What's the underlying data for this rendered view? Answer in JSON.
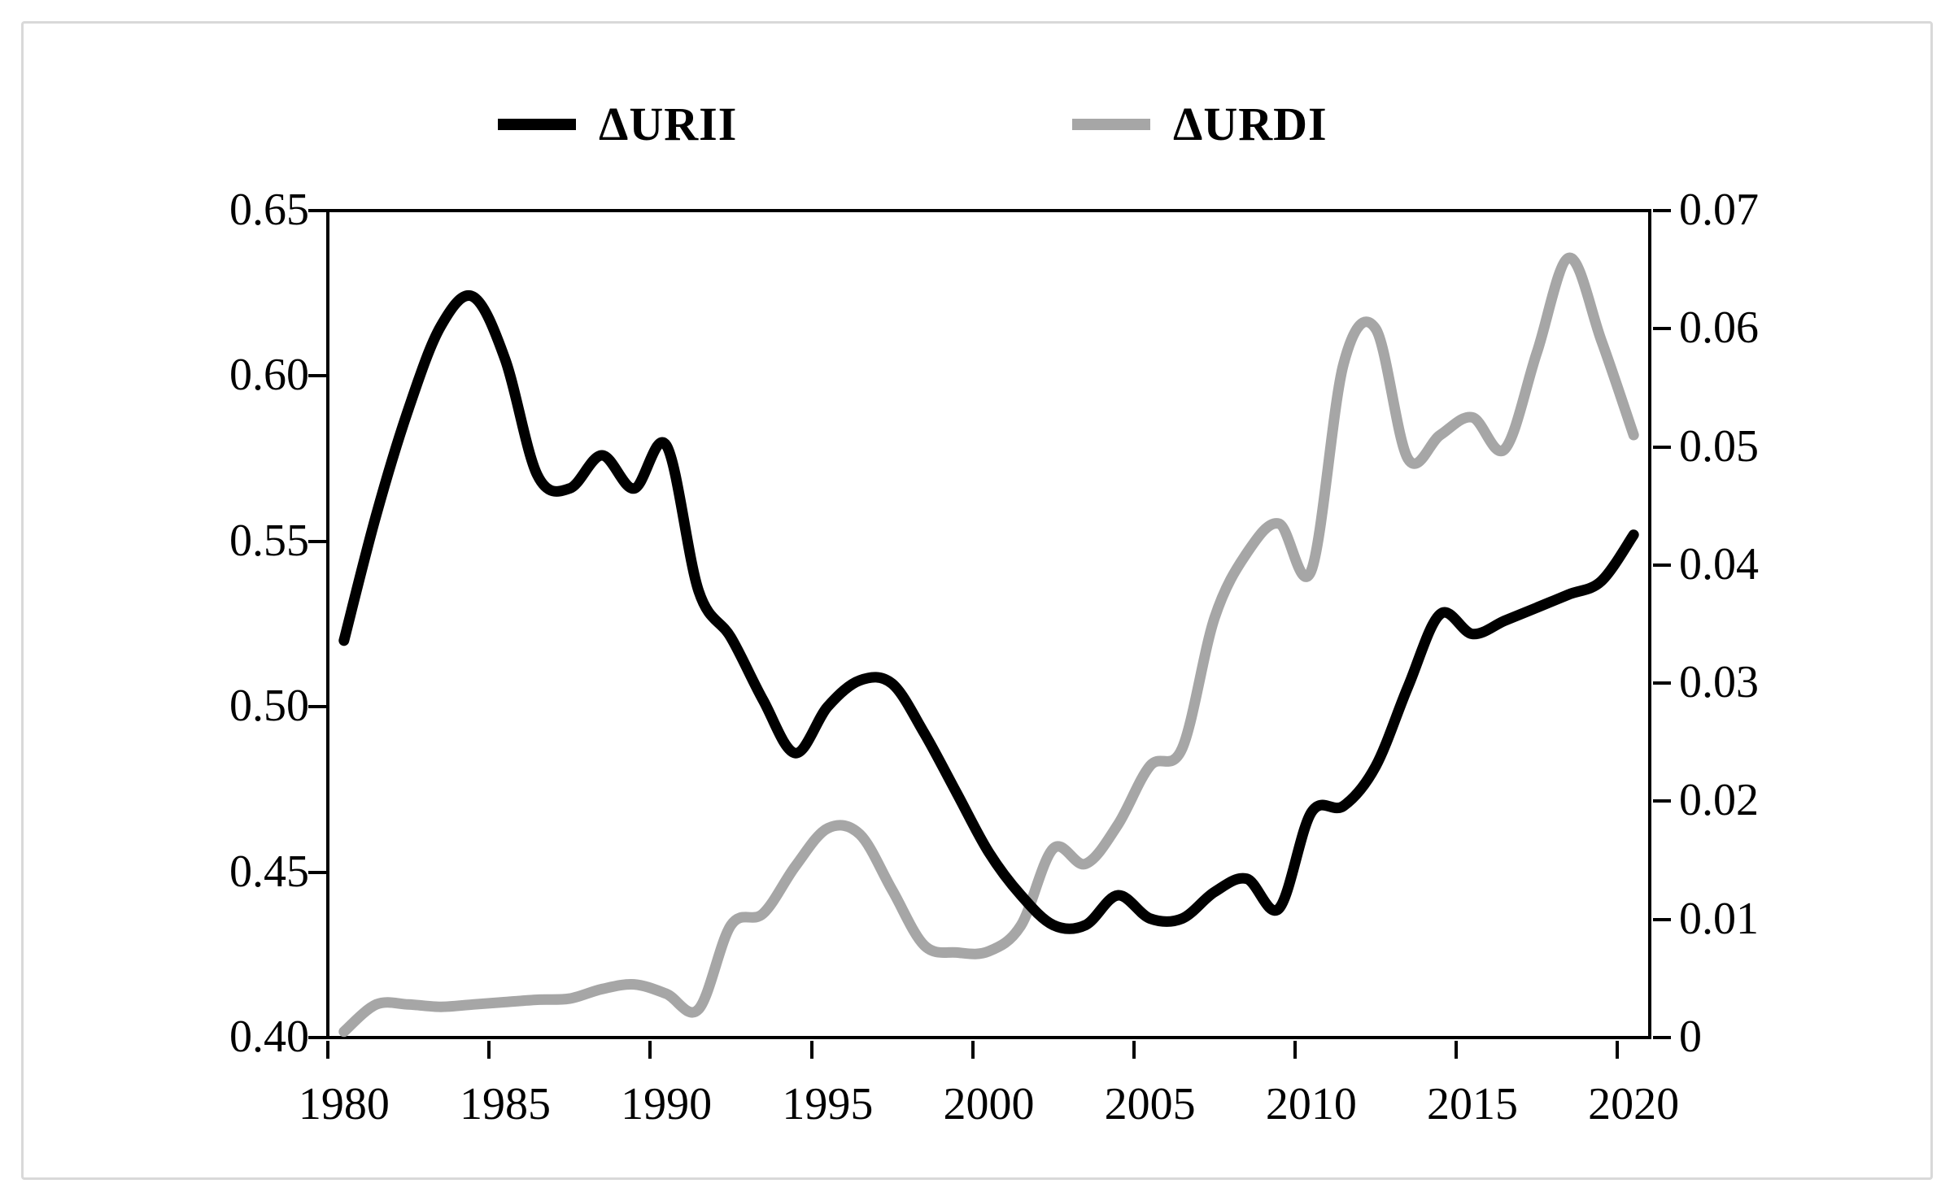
{
  "figure": {
    "background": "#ffffff",
    "frame_color": "#d9d9d9",
    "axis_color": "#000000"
  },
  "legend": {
    "items": [
      {
        "label": "ΔURII",
        "color": "#000000"
      },
      {
        "label": "ΔURDI",
        "color": "#a6a6a6"
      }
    ]
  },
  "chart_data": {
    "type": "line",
    "smoothed": true,
    "grid": false,
    "legend_position": "top-center",
    "title": "",
    "xlabel": "",
    "ylabel_left": "",
    "ylabel_right": "",
    "x": [
      1980,
      1981,
      1982,
      1983,
      1984,
      1985,
      1986,
      1987,
      1988,
      1989,
      1990,
      1991,
      1992,
      1993,
      1994,
      1995,
      1996,
      1997,
      1998,
      1999,
      2000,
      2001,
      2002,
      2003,
      2004,
      2005,
      2006,
      2007,
      2008,
      2009,
      2010,
      2011,
      2012,
      2013,
      2014,
      2015,
      2016,
      2017,
      2018,
      2019,
      2020
    ],
    "x_axis": {
      "tick_labels": [
        "1980",
        "1985",
        "1990",
        "1995",
        "2000",
        "2005",
        "2010",
        "2015",
        "2020"
      ],
      "tick_years": [
        1980,
        1985,
        1990,
        1995,
        2000,
        2005,
        2010,
        2015,
        2020
      ]
    },
    "left_axis": {
      "min": 0.4,
      "max": 0.65,
      "tick_labels": [
        "0.65",
        "0.60",
        "0.55",
        "0.50",
        "0.45",
        "0.40"
      ],
      "tick_values": [
        0.65,
        0.6,
        0.55,
        0.5,
        0.45,
        0.4
      ]
    },
    "right_axis": {
      "min": 0,
      "max": 0.07,
      "tick_labels": [
        "0.07",
        "0.06",
        "0.05",
        "0.04",
        "0.03",
        "0.02",
        "0.01",
        "0"
      ],
      "tick_values": [
        0.07,
        0.06,
        0.05,
        0.04,
        0.03,
        0.02,
        0.01,
        0
      ]
    },
    "series": [
      {
        "name": "ΔURII",
        "axis": "left",
        "color": "#000000",
        "stroke_width": 13,
        "values": [
          0.52,
          0.558,
          0.59,
          0.615,
          0.624,
          0.605,
          0.57,
          0.566,
          0.576,
          0.566,
          0.579,
          0.535,
          0.521,
          0.502,
          0.486,
          0.5,
          0.508,
          0.507,
          0.492,
          0.474,
          0.456,
          0.443,
          0.434,
          0.434,
          0.443,
          0.436,
          0.436,
          0.444,
          0.448,
          0.439,
          0.468,
          0.47,
          0.482,
          0.506,
          0.528,
          0.522,
          0.526,
          0.53,
          0.534,
          0.538,
          0.552
        ]
      },
      {
        "name": "ΔURDI",
        "axis": "right",
        "color": "#a6a6a6",
        "stroke_width": 13,
        "values": [
          0.0005,
          0.0028,
          0.0028,
          0.0026,
          0.0028,
          0.003,
          0.0032,
          0.0033,
          0.0041,
          0.0045,
          0.0037,
          0.0024,
          0.0095,
          0.0105,
          0.0145,
          0.0177,
          0.0172,
          0.0125,
          0.0078,
          0.0072,
          0.0073,
          0.0095,
          0.016,
          0.0147,
          0.018,
          0.023,
          0.0245,
          0.0355,
          0.041,
          0.0435,
          0.0395,
          0.057,
          0.06,
          0.049,
          0.051,
          0.0525,
          0.0498,
          0.058,
          0.066,
          0.059,
          0.051
        ]
      }
    ]
  }
}
